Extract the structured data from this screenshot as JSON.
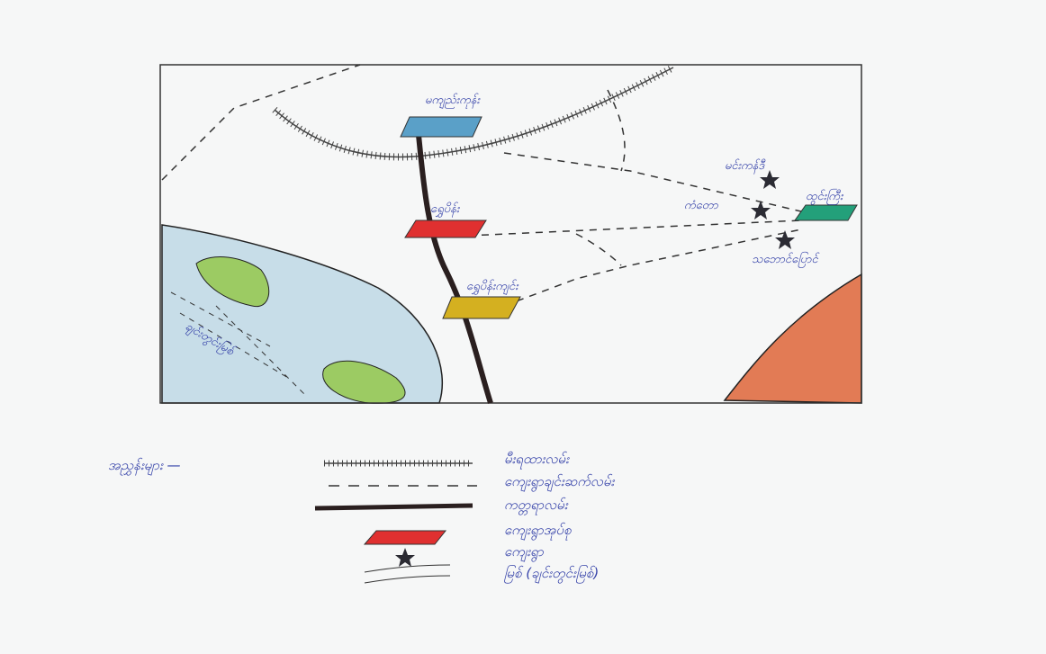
{
  "map": {
    "places": [
      {
        "label": "မကျည်းကုန်း"
      },
      {
        "label": "ရွှေပိန်း"
      },
      {
        "label": "ရွှေပိန်းကျင်း"
      },
      {
        "label": "ထွင်းကြီး"
      },
      {
        "label": "မင်းကန်ဒီ"
      },
      {
        "label": "ကံတော"
      },
      {
        "label": "သဘောင်ပြောင်"
      }
    ],
    "river_label": "ချင်းတွင်းမြစ်"
  },
  "legend": {
    "title": "အညွှန်းများ —",
    "items": [
      {
        "label": "မီးရထားလမ်း"
      },
      {
        "label": "ကျေးရွာချင်းဆက်လမ်း"
      },
      {
        "label": "ကတ္တရာလမ်း"
      },
      {
        "label": "ကျေးရွာအုပ်စု"
      },
      {
        "label": "ကျေးရွာ"
      },
      {
        "label": "မြစ် (ချင်းတွင်းမြစ်)"
      }
    ]
  }
}
